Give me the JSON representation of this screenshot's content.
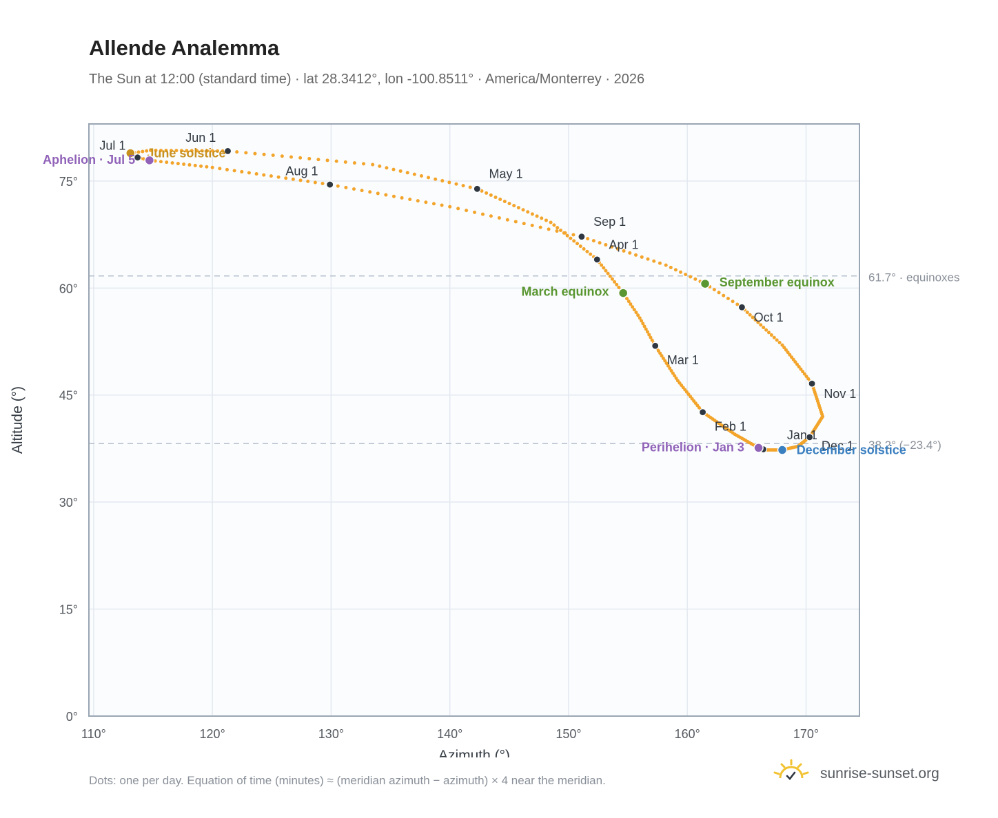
{
  "title": "Allende Analemma",
  "subtitle": "The Sun at 12:00 (standard time) · lat 28.3412°, lon -100.8511° · America/Monterrey · 2026",
  "footnote": "Dots: one per day. Equation of time (minutes) ≈ (meridian azimuth − azimuth) × 4 near the meridian.",
  "brand": {
    "text": "sunrise-sunset.org",
    "icon": "sun-logo-icon"
  },
  "colors": {
    "curve": "#f3a42a",
    "month_dot": "#2d3641",
    "equinox": "#5a9631",
    "solstice_june": "#c8901e",
    "solstice_december": "#3a7fc0",
    "apsis": "#9062b8",
    "grid": "#e4e9f0",
    "plot_bg": "#fafcfe",
    "frame": "#9aa6b4",
    "refline": "#b6c0cc"
  },
  "chart_data": {
    "type": "scatter",
    "xlabel": "Azimuth (°)",
    "ylabel": "Altitude (°)",
    "xlim": [
      109.6,
      174.5
    ],
    "ylim": [
      0,
      83
    ],
    "xticks": [
      110,
      120,
      130,
      140,
      150,
      160,
      170
    ],
    "xtick_labels": [
      "110°",
      "120°",
      "130°",
      "140°",
      "150°",
      "160°",
      "170°"
    ],
    "yticks": [
      0,
      15,
      30,
      45,
      60,
      75
    ],
    "ytick_labels": [
      "0°",
      "15°",
      "30°",
      "45°",
      "60°",
      "75°"
    ],
    "grid": true,
    "reference_lines": [
      {
        "y": 61.7,
        "label": "61.7° · equinoxes"
      },
      {
        "y": 38.2,
        "label": "38.2° (−23.4°)"
      }
    ],
    "path_anchors": [
      {
        "day": 1,
        "x": 166.4,
        "y": 37.4
      },
      {
        "day": 3,
        "x": 166.0,
        "y": 37.6
      },
      {
        "day": 16,
        "x": 164.0,
        "y": 39.5
      },
      {
        "day": 32,
        "x": 161.3,
        "y": 42.6
      },
      {
        "day": 46,
        "x": 159.2,
        "y": 47.0
      },
      {
        "day": 60,
        "x": 157.3,
        "y": 51.9
      },
      {
        "day": 70,
        "x": 156.0,
        "y": 55.8
      },
      {
        "day": 79,
        "x": 154.6,
        "y": 59.3
      },
      {
        "day": 91,
        "x": 152.4,
        "y": 64.0
      },
      {
        "day": 105,
        "x": 148.5,
        "y": 69.2
      },
      {
        "day": 121,
        "x": 142.3,
        "y": 73.9
      },
      {
        "day": 136,
        "x": 133.5,
        "y": 77.3
      },
      {
        "day": 152,
        "x": 121.3,
        "y": 79.2
      },
      {
        "day": 167,
        "x": 114.8,
        "y": 79.3
      },
      {
        "day": 172,
        "x": 113.1,
        "y": 78.9
      },
      {
        "day": 182,
        "x": 113.7,
        "y": 78.3
      },
      {
        "day": 186,
        "x": 114.7,
        "y": 77.9
      },
      {
        "day": 197,
        "x": 120.0,
        "y": 76.9
      },
      {
        "day": 213,
        "x": 129.9,
        "y": 74.5
      },
      {
        "day": 228,
        "x": 140.0,
        "y": 71.4
      },
      {
        "day": 244,
        "x": 151.1,
        "y": 67.2
      },
      {
        "day": 258,
        "x": 158.2,
        "y": 63.2
      },
      {
        "day": 266,
        "x": 161.5,
        "y": 60.6
      },
      {
        "day": 274,
        "x": 164.6,
        "y": 57.3
      },
      {
        "day": 289,
        "x": 168.0,
        "y": 52.0
      },
      {
        "day": 305,
        "x": 170.5,
        "y": 46.6
      },
      {
        "day": 320,
        "x": 171.4,
        "y": 42.0
      },
      {
        "day": 335,
        "x": 170.3,
        "y": 39.1
      },
      {
        "day": 345,
        "x": 169.3,
        "y": 37.8
      },
      {
        "day": 355,
        "x": 168.0,
        "y": 37.3
      },
      {
        "day": 365,
        "x": 166.6,
        "y": 37.3
      }
    ],
    "month_markers": [
      {
        "label": "Jan 1",
        "x": 166.4,
        "y": 37.4,
        "dx": 2,
        "dy": 1.4,
        "anchor": "start"
      },
      {
        "label": "Feb 1",
        "x": 161.3,
        "y": 42.6,
        "dx": 1.0,
        "dy": -2.6,
        "anchor": "start"
      },
      {
        "label": "Mar 1",
        "x": 157.3,
        "y": 51.9,
        "dx": 1.0,
        "dy": -2.6,
        "anchor": "start"
      },
      {
        "label": "Apr 1",
        "x": 152.4,
        "y": 64.0,
        "dx": 1.0,
        "dy": 1.5,
        "anchor": "start"
      },
      {
        "label": "May 1",
        "x": 142.3,
        "y": 73.9,
        "dx": 1.0,
        "dy": 1.5,
        "anchor": "start"
      },
      {
        "label": "Jun 1",
        "x": 121.3,
        "y": 79.2,
        "dx": -1.0,
        "dy": 1.3,
        "anchor": "end"
      },
      {
        "label": "Jul 1",
        "x": 113.7,
        "y": 78.3,
        "dx": -1.0,
        "dy": 1.1,
        "anchor": "end"
      },
      {
        "label": "Aug 1",
        "x": 129.9,
        "y": 74.5,
        "dx": -1.0,
        "dy": 1.3,
        "anchor": "end"
      },
      {
        "label": "Sep 1",
        "x": 151.1,
        "y": 67.2,
        "dx": 1.0,
        "dy": 1.5,
        "anchor": "start"
      },
      {
        "label": "Oct 1",
        "x": 164.6,
        "y": 57.3,
        "dx": 1.0,
        "dy": -2.0,
        "anchor": "start"
      },
      {
        "label": "Nov 1",
        "x": 170.5,
        "y": 46.6,
        "dx": 1.0,
        "dy": -2.0,
        "anchor": "start"
      },
      {
        "label": "Dec 1",
        "x": 170.3,
        "y": 39.1,
        "dx": 1.0,
        "dy": -1.8,
        "anchor": "start"
      }
    ],
    "events": [
      {
        "label": "March equinox",
        "kind": "equinox",
        "x": 154.6,
        "y": 59.3,
        "dx": -1.2,
        "dy": -0.4,
        "anchor": "end"
      },
      {
        "label": "September equinox",
        "kind": "equinox",
        "x": 161.5,
        "y": 60.6,
        "dx": 1.2,
        "dy": -0.4,
        "anchor": "start"
      },
      {
        "label": "June solstice",
        "kind": "solstice_june",
        "x": 113.1,
        "y": 78.9,
        "dx": 1.4,
        "dy": -0.6,
        "anchor": "start"
      },
      {
        "label": "December solstice",
        "kind": "solstice_december",
        "x": 168.0,
        "y": 37.3,
        "dx": 1.2,
        "dy": -0.6,
        "anchor": "start"
      },
      {
        "label": "Perihelion · Jan 3",
        "kind": "apsis",
        "x": 166.0,
        "y": 37.6,
        "dx": -1.2,
        "dy": -0.5,
        "anchor": "end"
      },
      {
        "label": "Aphelion · Jul 5",
        "kind": "apsis",
        "x": 114.7,
        "y": 77.9,
        "dx": -1.2,
        "dy": -0.5,
        "anchor": "end"
      }
    ]
  }
}
